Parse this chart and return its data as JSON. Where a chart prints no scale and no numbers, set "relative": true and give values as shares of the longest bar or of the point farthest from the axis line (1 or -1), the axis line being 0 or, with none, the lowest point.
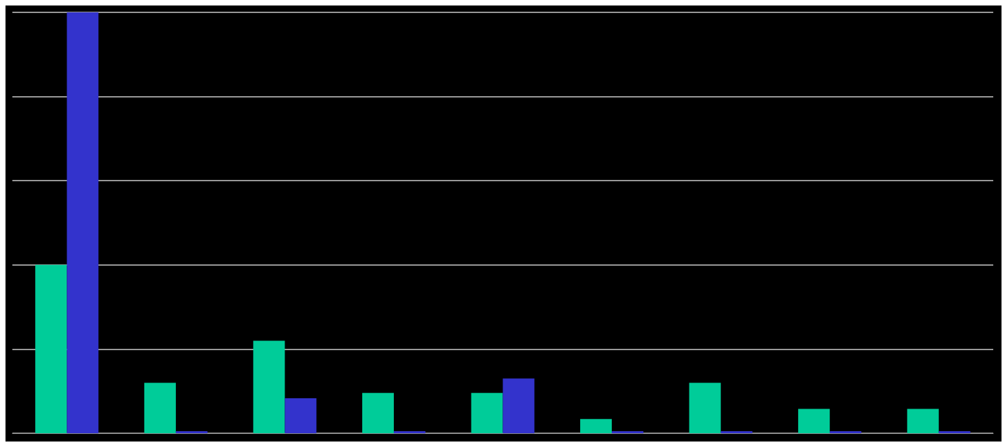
{
  "chart_data": {
    "type": "bar",
    "relative": true,
    "grid": "y",
    "categories": [
      null,
      null,
      null,
      null,
      null,
      null,
      null,
      null,
      null
    ],
    "series": [
      {
        "color": "#00cc99",
        "values": [
          0.4,
          0.12,
          0.22,
          0.096,
          0.096,
          0.034,
          0.12,
          0.058,
          0.058
        ]
      },
      {
        "color": "#3333cc",
        "values": [
          1,
          0,
          0.083,
          0,
          0.13,
          0,
          0,
          0,
          0
        ]
      }
    ]
  }
}
